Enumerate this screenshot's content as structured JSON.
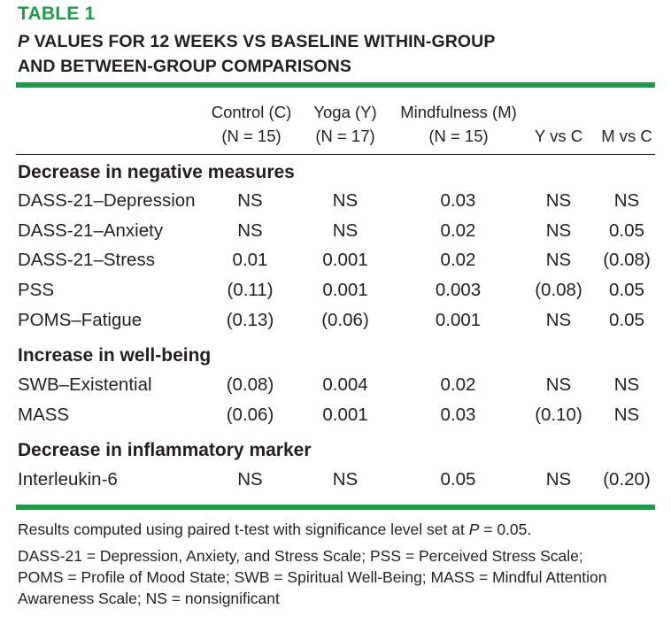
{
  "table": {
    "label": "TABLE 1",
    "title_line1_italic": "P",
    "title_line1_rest": " VALUES FOR 12 WEEKS VS BASELINE WITHIN-GROUP",
    "title_line2": "AND BETWEEN-GROUP COMPARISONS",
    "headers": [
      {
        "line1": "Control (C)",
        "line2": "(N = 15)"
      },
      {
        "line1": "Yoga (Y)",
        "line2": "(N = 17)"
      },
      {
        "line1": "Mindfulness (M)",
        "line2": "(N = 15)"
      },
      {
        "line1": "",
        "line2": "Y vs C"
      },
      {
        "line1": "",
        "line2": "M vs C"
      }
    ],
    "sections": [
      {
        "title": "Decrease in negative measures",
        "rows": [
          {
            "label": "DASS-21–Depression",
            "values": [
              "NS",
              "NS",
              "0.03",
              "NS",
              "NS"
            ]
          },
          {
            "label": "DASS-21–Anxiety",
            "values": [
              "NS",
              "NS",
              "0.02",
              "NS",
              "0.05"
            ]
          },
          {
            "label": "DASS-21–Stress",
            "values": [
              "0.01",
              "0.001",
              "0.02",
              "NS",
              "(0.08)"
            ]
          },
          {
            "label": "PSS",
            "values": [
              "(0.11)",
              "0.001",
              "0.003",
              "(0.08)",
              "0.05"
            ]
          },
          {
            "label": "POMS–Fatigue",
            "values": [
              "(0.13)",
              "(0.06)",
              "0.001",
              "NS",
              "0.05"
            ]
          }
        ]
      },
      {
        "title": "Increase in well-being",
        "rows": [
          {
            "label": "SWB–Existential",
            "values": [
              "(0.08)",
              "0.004",
              "0.02",
              "NS",
              "NS"
            ]
          },
          {
            "label": "MASS",
            "values": [
              "(0.06)",
              "0.001",
              "0.03",
              "(0.10)",
              "NS"
            ]
          }
        ]
      },
      {
        "title": "Decrease in inflammatory marker",
        "rows": [
          {
            "label": "Interleukin-6",
            "values": [
              "NS",
              "NS",
              "0.05",
              "NS",
              "(0.20)"
            ]
          }
        ]
      }
    ],
    "footnote1_pre": "Results computed using paired t-test with significance level set at ",
    "footnote1_italic": "P",
    "footnote1_post": " = 0.05.",
    "footnote2_line1": "DASS-21 = Depression, Anxiety, and Stress Scale; PSS = Perceived Stress Scale;",
    "footnote2_line2": "POMS = Profile of Mood State; SWB = Spiritual Well-Being; MASS = Mindful Attention",
    "footnote2_line3": "Awareness Scale; NS = nonsignificant"
  }
}
